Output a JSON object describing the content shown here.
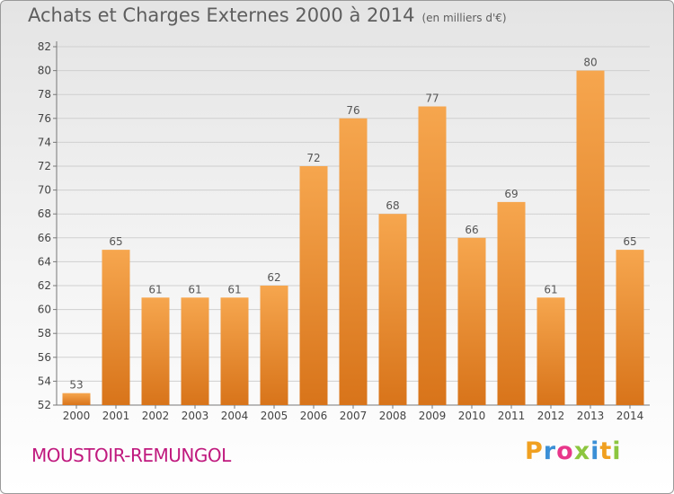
{
  "header": {
    "title": "Achats et Charges Externes 2000 à 2014",
    "subtitle": "(en milliers d'€)"
  },
  "footer": {
    "city": "MOUSTOIR-REMUNGOL",
    "logo": "Proxiti",
    "logo_letters": [
      {
        "char": "P",
        "color": "#f0a020"
      },
      {
        "char": "r",
        "color": "#3b8fd6"
      },
      {
        "char": "o",
        "color": "#e8368a"
      },
      {
        "char": "x",
        "color": "#8cc63f"
      },
      {
        "char": "i",
        "color": "#3b8fd6"
      },
      {
        "char": "t",
        "color": "#f0a020"
      },
      {
        "char": "i",
        "color": "#8cc63f"
      }
    ],
    "city_color": "#c0197e"
  },
  "chart_data": {
    "type": "bar",
    "categories": [
      "2000",
      "2001",
      "2002",
      "2003",
      "2004",
      "2005",
      "2006",
      "2007",
      "2008",
      "2009",
      "2010",
      "2011",
      "2012",
      "2013",
      "2014"
    ],
    "values": [
      53,
      65,
      61,
      61,
      61,
      62,
      72,
      76,
      68,
      77,
      66,
      69,
      61,
      80,
      65
    ],
    "ylim": [
      52,
      82
    ],
    "yticks": [
      52,
      54,
      56,
      58,
      60,
      62,
      64,
      66,
      68,
      70,
      72,
      74,
      76,
      78,
      80,
      82
    ],
    "grid": true,
    "bar_color_top": "#f6a64e",
    "bar_color_bottom": "#d8741a"
  }
}
